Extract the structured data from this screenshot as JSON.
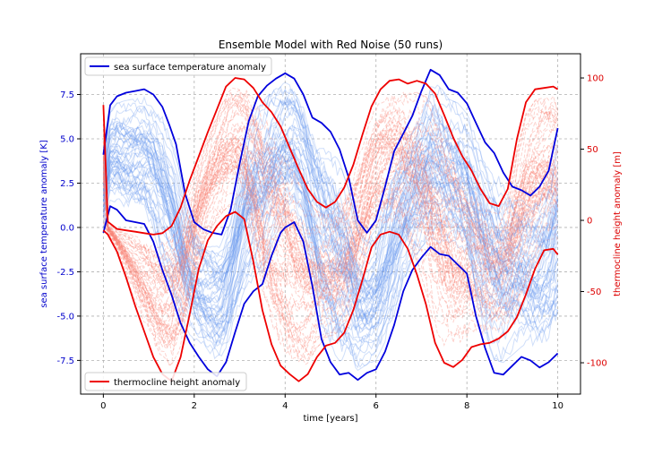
{
  "chart_data": {
    "type": "line",
    "title": "Ensemble Model with Red Noise (50 runs)",
    "xlabel": "time [years]",
    "ylabel_left": "sea surface temperature anomaly [K]",
    "ylabel_right": "thermocline height anomaly [m]",
    "xlim": [
      -0.5,
      10.5
    ],
    "ylim_left": [
      -9.4,
      9.8
    ],
    "ylim_right": [
      -122,
      117
    ],
    "x_ticks": [
      0,
      2,
      4,
      6,
      8,
      10
    ],
    "y_ticks_left": [
      -7.5,
      -5.0,
      -2.5,
      0.0,
      2.5,
      5.0,
      7.5
    ],
    "y_ticks_right": [
      -100,
      -50,
      0,
      50,
      100
    ],
    "grid": true,
    "legend_left": {
      "position": "upper-left",
      "label": "sea surface temperature anomaly"
    },
    "legend_right": {
      "position": "lower-left",
      "label": "thermocline height anomaly"
    },
    "colors": {
      "sst_envelope": "#0000dd",
      "sst_ensemble": "#6495ed",
      "h_envelope": "#ee0000",
      "h_ensemble": "#fa8072",
      "left_axis": "#0000cc",
      "right_axis": "#dd0000"
    },
    "ensemble_runs": 50,
    "series": [
      {
        "name": "sea surface temperature anomaly",
        "role": "upper envelope",
        "axis": "left",
        "x": [
          0,
          0.15,
          0.3,
          0.5,
          0.7,
          0.9,
          1.1,
          1.3,
          1.45,
          1.6,
          1.8,
          2.0,
          2.2,
          2.4,
          2.6,
          2.8,
          3.0,
          3.2,
          3.4,
          3.6,
          3.8,
          4.0,
          4.2,
          4.4,
          4.6,
          4.8,
          5.0,
          5.2,
          5.4,
          5.6,
          5.8,
          6.0,
          6.2,
          6.4,
          6.6,
          6.8,
          7.0,
          7.2,
          7.4,
          7.6,
          7.8,
          8.0,
          8.2,
          8.4,
          8.6,
          8.8,
          9.0,
          9.2,
          9.4,
          9.6,
          9.8,
          10.0
        ],
        "y": [
          4.1,
          6.9,
          7.4,
          7.6,
          7.7,
          7.8,
          7.5,
          6.8,
          5.8,
          4.7,
          1.9,
          0.3,
          -0.1,
          -0.3,
          -0.4,
          1.0,
          3.6,
          6.0,
          7.4,
          8.0,
          8.4,
          8.7,
          8.4,
          7.5,
          6.2,
          5.9,
          5.4,
          4.4,
          2.8,
          0.4,
          -0.3,
          0.4,
          2.3,
          4.3,
          5.3,
          6.3,
          7.7,
          8.9,
          8.6,
          7.8,
          7.6,
          7.0,
          5.9,
          4.8,
          4.2,
          3.1,
          2.3,
          2.1,
          1.8,
          2.3,
          3.2,
          5.6
        ]
      },
      {
        "name": "sea surface temperature anomaly",
        "role": "lower envelope",
        "axis": "left",
        "x": [
          0,
          0.15,
          0.3,
          0.5,
          0.7,
          0.9,
          1.1,
          1.3,
          1.5,
          1.7,
          1.9,
          2.1,
          2.3,
          2.5,
          2.7,
          2.9,
          3.1,
          3.3,
          3.5,
          3.7,
          3.9,
          4.0,
          4.2,
          4.4,
          4.6,
          4.8,
          5.0,
          5.2,
          5.4,
          5.6,
          5.8,
          6.0,
          6.2,
          6.4,
          6.6,
          6.8,
          7.0,
          7.2,
          7.4,
          7.6,
          7.8,
          8.0,
          8.2,
          8.4,
          8.6,
          8.8,
          9.0,
          9.2,
          9.4,
          9.6,
          9.8,
          10.0
        ],
        "y": [
          -0.3,
          1.2,
          1.0,
          0.4,
          0.3,
          0.2,
          -0.8,
          -2.4,
          -3.8,
          -5.4,
          -6.5,
          -7.3,
          -8.0,
          -8.4,
          -7.6,
          -5.9,
          -4.3,
          -3.6,
          -3.2,
          -1.6,
          -0.3,
          0.0,
          0.3,
          -0.8,
          -3.3,
          -6.3,
          -7.6,
          -8.3,
          -8.2,
          -8.6,
          -8.2,
          -8.0,
          -7.0,
          -5.5,
          -3.6,
          -2.4,
          -1.7,
          -1.1,
          -1.5,
          -1.6,
          -2.1,
          -2.6,
          -5.0,
          -6.8,
          -8.2,
          -8.3,
          -7.8,
          -7.3,
          -7.5,
          -7.9,
          -7.6,
          -7.1
        ]
      },
      {
        "name": "thermocline height anomaly",
        "role": "upper envelope",
        "axis": "right",
        "x": [
          0,
          0.1,
          0.3,
          0.5,
          0.7,
          0.9,
          1.1,
          1.3,
          1.5,
          1.7,
          1.9,
          2.1,
          2.3,
          2.5,
          2.7,
          2.9,
          3.1,
          3.3,
          3.5,
          3.7,
          3.9,
          4.1,
          4.3,
          4.5,
          4.7,
          4.9,
          5.1,
          5.3,
          5.5,
          5.7,
          5.9,
          6.1,
          6.3,
          6.5,
          6.7,
          6.9,
          7.1,
          7.3,
          7.5,
          7.7,
          7.9,
          8.1,
          8.3,
          8.5,
          8.7,
          8.9,
          9.1,
          9.3,
          9.5,
          9.7,
          9.9,
          10.0
        ],
        "y": [
          81,
          -1,
          -6,
          -7,
          -8,
          -9,
          -10,
          -9,
          -4,
          9,
          28,
          45,
          62,
          78,
          94,
          100,
          99,
          93,
          83,
          76,
          66,
          51,
          36,
          22,
          13,
          9,
          13,
          23,
          39,
          60,
          80,
          92,
          98,
          99,
          96,
          98,
          96,
          89,
          74,
          58,
          45,
          35,
          22,
          12,
          10,
          22,
          57,
          83,
          92,
          93,
          94,
          92
        ]
      },
      {
        "name": "thermocline height anomaly",
        "role": "lower envelope",
        "axis": "right",
        "x": [
          0,
          0.1,
          0.3,
          0.5,
          0.7,
          0.9,
          1.1,
          1.3,
          1.5,
          1.7,
          1.9,
          2.1,
          2.3,
          2.5,
          2.7,
          2.9,
          3.1,
          3.3,
          3.5,
          3.7,
          3.9,
          4.1,
          4.3,
          4.5,
          4.7,
          4.9,
          5.1,
          5.3,
          5.5,
          5.7,
          5.9,
          6.1,
          6.3,
          6.5,
          6.7,
          6.9,
          7.1,
          7.3,
          7.5,
          7.7,
          7.9,
          8.1,
          8.3,
          8.5,
          8.7,
          8.9,
          9.1,
          9.3,
          9.5,
          9.7,
          9.9,
          10.0
        ],
        "y": [
          -7,
          -10,
          -22,
          -40,
          -60,
          -78,
          -96,
          -108,
          -113,
          -96,
          -66,
          -34,
          -14,
          -4,
          3,
          6,
          1,
          -29,
          -63,
          -87,
          -102,
          -108,
          -113,
          -108,
          -96,
          -88,
          -86,
          -79,
          -63,
          -42,
          -19,
          -10,
          -8,
          -10,
          -20,
          -38,
          -59,
          -86,
          -100,
          -103,
          -98,
          -89,
          -87,
          -86,
          -83,
          -78,
          -68,
          -52,
          -34,
          -21,
          -20,
          -24
        ]
      }
    ]
  }
}
